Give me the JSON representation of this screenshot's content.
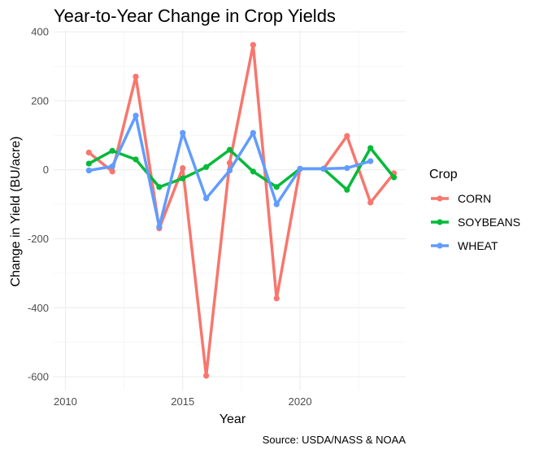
{
  "chart_data": {
    "type": "line",
    "title": "Year-to-Year Change in Crop Yields",
    "xlabel": "Year",
    "ylabel": "Change in Yield (BU/acre)",
    "caption": "Source: USDA/NASS & NOAA",
    "legend_title": "Crop",
    "legend_position": "right",
    "grid": true,
    "xlim": [
      2009.5,
      2024.5
    ],
    "ylim": [
      -640,
      405
    ],
    "x_ticks": [
      2010,
      2015,
      2020
    ],
    "y_ticks": [
      -600,
      -400,
      -200,
      0,
      200,
      400
    ],
    "x_tick_labels": [
      "2010",
      "2015",
      "2020"
    ],
    "y_tick_labels": [
      "-600",
      "-400",
      "-200",
      "0",
      "200",
      "400"
    ],
    "series": [
      {
        "name": "CORN",
        "color": "#F8766D",
        "x": [
          2011,
          2012,
          2013,
          2014,
          2015,
          2016,
          2017,
          2018,
          2019,
          2020,
          2021,
          2022,
          2023,
          2024
        ],
        "y": [
          50,
          -5,
          270,
          -170,
          5,
          -597,
          20,
          362,
          -373,
          3,
          3,
          98,
          -95,
          -10
        ]
      },
      {
        "name": "SOYBEANS",
        "color": "#00BA38",
        "x": [
          2011,
          2012,
          2013,
          2014,
          2015,
          2016,
          2017,
          2018,
          2019,
          2020,
          2021,
          2022,
          2023,
          2024
        ],
        "y": [
          18,
          55,
          30,
          -50,
          -25,
          8,
          58,
          -5,
          -50,
          3,
          3,
          -58,
          63,
          -22
        ]
      },
      {
        "name": "WHEAT",
        "color": "#619CFF",
        "x": [
          2011,
          2012,
          2013,
          2014,
          2015,
          2016,
          2017,
          2018,
          2019,
          2020,
          2021,
          2022,
          2023
        ],
        "y": [
          -2,
          10,
          157,
          -165,
          107,
          -83,
          -2,
          107,
          -100,
          3,
          3,
          5,
          25
        ]
      }
    ]
  }
}
